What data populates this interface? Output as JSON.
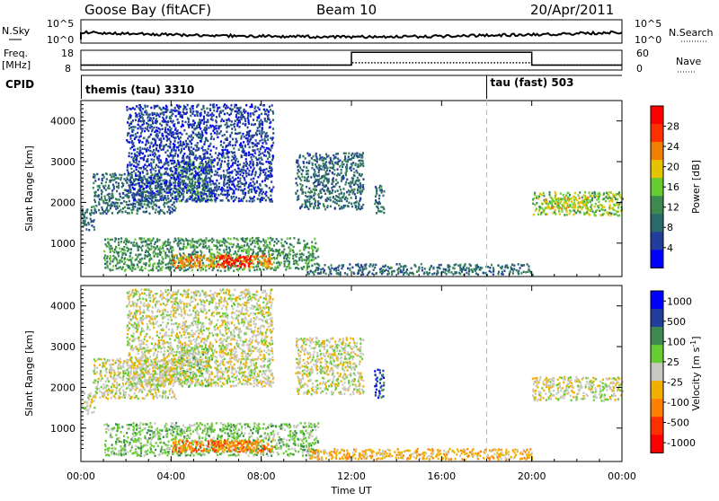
{
  "header": {
    "station": "Goose Bay (fitACF)",
    "beam": "Beam 10",
    "date": "20/Apr/2011"
  },
  "top_panels": {
    "nsky_label": "N.Sky",
    "nsky_ticks": [
      "10^5",
      "10^0"
    ],
    "nsearch_label": "N.Search",
    "nsearch_ticks": [
      "10^5",
      "10^0"
    ],
    "freq_label": "Freq.",
    "freq_unit": "[MHz]",
    "freq_ticks": [
      "18",
      "8"
    ],
    "nave_label": "Nave",
    "nave_ticks": [
      "60",
      "0"
    ],
    "cpid_label": "CPID",
    "cpid_segments": [
      {
        "label": "themis (tau) 3310",
        "start_hour": 0
      },
      {
        "label": "tau (fast) 503",
        "start_hour": 18
      }
    ]
  },
  "colors": {
    "power_scale": [
      "#0000ff",
      "#233e9a",
      "#2b6a6a",
      "#3c8a50",
      "#66cc33",
      "#e6c200",
      "#f08000",
      "#ff3000",
      "#ff0000"
    ],
    "velocity_scale": [
      "#ff0000",
      "#ff3000",
      "#ff8000",
      "#f0b000",
      "#c8c8c0",
      "#66cc33",
      "#3c8a50",
      "#233e9a",
      "#0000ff"
    ]
  },
  "chart_data": [
    {
      "type": "heatmap",
      "name": "power",
      "xlabel": "",
      "ylabel": "Slant Range [km]",
      "xlim": [
        0,
        24
      ],
      "ylim": [
        180,
        4500
      ],
      "yticks": [
        "1000",
        "2000",
        "3000",
        "4000"
      ],
      "colorbar_label": "Power [dB]",
      "colorbar_ticks": [
        "4",
        "8",
        "12",
        "16",
        "20",
        "24",
        "28"
      ],
      "colorbar_range": [
        0,
        30
      ],
      "echo_regions": [
        {
          "t0": 0.0,
          "t1": 0.6,
          "r0": 1300,
          "r1": 1900,
          "level": 2
        },
        {
          "t0": 0.5,
          "t1": 4.2,
          "r0": 1700,
          "r1": 2700,
          "level": 2
        },
        {
          "t0": 4.2,
          "t1": 5.8,
          "r0": 2000,
          "r1": 3000,
          "level": 3
        },
        {
          "t0": 2.0,
          "t1": 8.5,
          "r0": 2000,
          "r1": 4400,
          "level": 1
        },
        {
          "t0": 9.5,
          "t1": 12.5,
          "r0": 1800,
          "r1": 3200,
          "level": 2
        },
        {
          "t0": 1.0,
          "t1": 10.5,
          "r0": 300,
          "r1": 1100,
          "level": 3
        },
        {
          "t0": 4.0,
          "t1": 8.5,
          "r0": 380,
          "r1": 680,
          "level": 6
        },
        {
          "t0": 6.0,
          "t1": 7.5,
          "r0": 400,
          "r1": 650,
          "level": 8
        },
        {
          "t0": 10.0,
          "t1": 20.0,
          "r0": 200,
          "r1": 450,
          "level": 2
        },
        {
          "t0": 13.0,
          "t1": 13.4,
          "r0": 1700,
          "r1": 2400,
          "level": 2
        },
        {
          "t0": 20.0,
          "t1": 24.0,
          "r0": 1650,
          "r1": 2250,
          "level": 4
        },
        {
          "t0": 20.5,
          "t1": 22.5,
          "r0": 1800,
          "r1": 2100,
          "level": 5
        }
      ]
    },
    {
      "type": "heatmap",
      "name": "velocity",
      "xlabel": "Time UT",
      "ylabel": "Slant Range [km]",
      "xlim": [
        0,
        24
      ],
      "ylim": [
        180,
        4500
      ],
      "xticks": [
        "00:00",
        "04:00",
        "08:00",
        "12:00",
        "16:00",
        "20:00",
        "00:00"
      ],
      "yticks": [
        "1000",
        "2000",
        "3000",
        "4000"
      ],
      "colorbar_label": "Velocity [m s^-1]",
      "colorbar_ticks": [
        "1000",
        "500",
        "100",
        "25",
        "-25",
        "-100",
        "-500",
        "-1000"
      ],
      "echo_regions": [
        {
          "t0": 0.0,
          "t1": 0.6,
          "r0": 1300,
          "r1": 1900,
          "level": 4
        },
        {
          "t0": 0.5,
          "t1": 4.2,
          "r0": 1700,
          "r1": 2700,
          "level": 4
        },
        {
          "t0": 4.2,
          "t1": 5.8,
          "r0": 2000,
          "r1": 3000,
          "level": 5
        },
        {
          "t0": 2.0,
          "t1": 8.5,
          "r0": 2000,
          "r1": 4400,
          "level": 4
        },
        {
          "t0": 9.5,
          "t1": 12.5,
          "r0": 1800,
          "r1": 3200,
          "level": 4
        },
        {
          "t0": 1.0,
          "t1": 10.5,
          "r0": 300,
          "r1": 1100,
          "level": 5
        },
        {
          "t0": 4.0,
          "t1": 8.5,
          "r0": 380,
          "r1": 680,
          "level": 2
        },
        {
          "t0": 6.0,
          "t1": 7.5,
          "r0": 400,
          "r1": 650,
          "level": 2
        },
        {
          "t0": 10.0,
          "t1": 20.0,
          "r0": 200,
          "r1": 450,
          "level": 3
        },
        {
          "t0": 13.0,
          "t1": 13.4,
          "r0": 1700,
          "r1": 2400,
          "level": 7
        },
        {
          "t0": 20.0,
          "t1": 24.0,
          "r0": 1650,
          "r1": 2250,
          "level": 4
        }
      ]
    }
  ],
  "frequency_series": {
    "segments": [
      {
        "t0": 0,
        "t1": 12,
        "freq_mhz": 10.5
      },
      {
        "t0": 12,
        "t1": 20,
        "freq_mhz": 17
      },
      {
        "t0": 20,
        "t1": 24,
        "freq_mhz": 10.5
      }
    ],
    "nave_segments": [
      {
        "t0": 0,
        "t1": 12,
        "nave": 15
      },
      {
        "t0": 12,
        "t1": 20,
        "nave": 22
      },
      {
        "t0": 20,
        "t1": 24,
        "nave": 15
      }
    ]
  }
}
